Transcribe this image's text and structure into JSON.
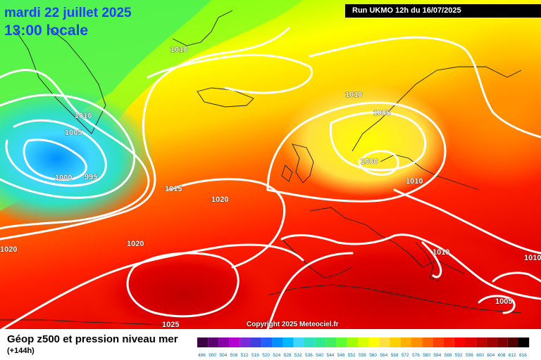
{
  "header": {
    "date": "mardi 22 juillet 2025",
    "time": "13:00 locale",
    "run": "Run UKMO 12h du 16/07/2025"
  },
  "copyright": "Copyright 2025 Meteociel.fr",
  "legend": {
    "title": "Géop z500 et pression niveau mer",
    "subtitle": "(+144h)",
    "scale": [
      "496",
      "500",
      "504",
      "508",
      "512",
      "516",
      "520",
      "524",
      "528",
      "532",
      "536",
      "540",
      "544",
      "548",
      "552",
      "556",
      "560",
      "564",
      "568",
      "572",
      "576",
      "580",
      "584",
      "588",
      "592",
      "596",
      "600",
      "604",
      "608",
      "612",
      "616"
    ],
    "colors": [
      "#3a0040",
      "#5a0070",
      "#8a00a8",
      "#b400d0",
      "#7a2ad8",
      "#4040e0",
      "#2060ff",
      "#0090ff",
      "#00b8ff",
      "#40d8ff",
      "#30e0c0",
      "#30e890",
      "#40f060",
      "#60ff30",
      "#a0ff00",
      "#d8ff00",
      "#ffff00",
      "#ffe040",
      "#ffd000",
      "#ffb000",
      "#ff9000",
      "#ff6800",
      "#ff4000",
      "#ff2000",
      "#ff0000",
      "#e00000",
      "#c00000",
      "#a00000",
      "#800000",
      "#500000",
      "#000000"
    ]
  },
  "isobar_labels": {
    "l1010_greenland": "1010",
    "l1010_west": "1010",
    "l1005_west": "1005",
    "l1000_low": "1000",
    "l995": "995",
    "l1015": "1015",
    "l1020_mid": "1020",
    "l1020_lower": "1020",
    "l1020_left": "1020",
    "l1010_scand": "1010",
    "l1005_scand": "1005",
    "l1000_scand": "1000",
    "l1010_baltic": "1010",
    "l1010_balkan": "1010",
    "l1010_right": "1010",
    "l1005_east": "1005",
    "l1025": "1025"
  }
}
